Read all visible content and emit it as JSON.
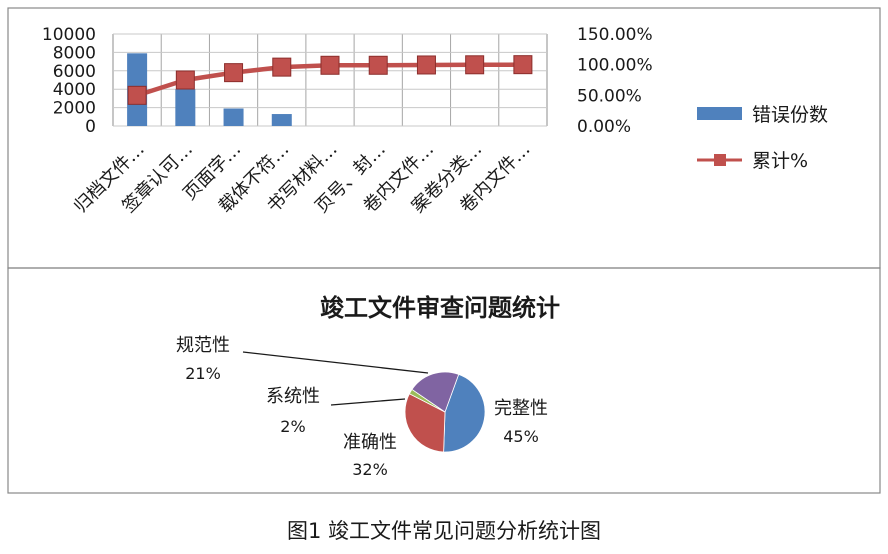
{
  "caption": "图1 竣工文件常见问题分析统计图",
  "chart_data": [
    {
      "type": "bar",
      "categories": [
        "归档文件…",
        "签章认可…",
        "页面字…",
        "载体不符…",
        "书写材料…",
        "页号、封…",
        "卷内文件…",
        "案卷分类…",
        "卷内文件…"
      ],
      "series": [
        {
          "name": "错误份数",
          "type": "bar",
          "axis": "left",
          "color": "#4f81bd",
          "values": [
            7900,
            4000,
            1900,
            1300,
            0,
            0,
            0,
            0,
            0
          ]
        },
        {
          "name": "累计%",
          "type": "line",
          "axis": "right",
          "color": "#c0504d",
          "marker": "square",
          "values": [
            50,
            75,
            87,
            96,
            99,
            99,
            99.5,
            99.8,
            100
          ]
        }
      ],
      "y_left": {
        "min": 0,
        "max": 10000,
        "ticks": [
          "0",
          "2000",
          "4000",
          "6000",
          "8000",
          "10000"
        ]
      },
      "y_right": {
        "min": 0,
        "max": 150,
        "ticks": [
          "0.00%",
          "50.00%",
          "100.00%",
          "150.00%"
        ]
      },
      "grid": true,
      "legend": "right"
    },
    {
      "type": "pie",
      "title": "竣工文件审查问题统计",
      "slices": [
        {
          "label": "完整性",
          "pct_label": "45%",
          "value": 45,
          "color": "#4f81bd"
        },
        {
          "label": "准确性",
          "pct_label": "32%",
          "value": 32,
          "color": "#c0504d"
        },
        {
          "label": "系统性",
          "pct_label": "2%",
          "value": 2,
          "color": "#9bbb59"
        },
        {
          "label": "规范性",
          "pct_label": "21%",
          "value": 21,
          "color": "#8064a2"
        }
      ]
    }
  ]
}
